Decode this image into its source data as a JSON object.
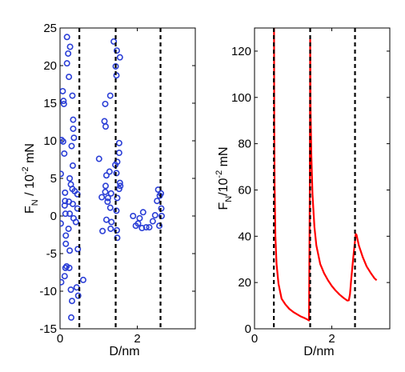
{
  "chart_data": [
    {
      "type": "scatter",
      "title": "",
      "xlabel": "D/nm",
      "ylabel": {
        "base": "F",
        "sub": "N",
        "rest": " / 10",
        "exp": "-2",
        "unit": " mN"
      },
      "xlim": [
        0,
        3.5
      ],
      "ylim": [
        -15,
        25
      ],
      "xticks": [
        0,
        2
      ],
      "yticks": [
        -15,
        -10,
        -5,
        0,
        5,
        10,
        15,
        20,
        25
      ],
      "marker": "circle",
      "marker_color": "#2b3fd6",
      "vlines": [
        0.5,
        1.44,
        2.6
      ],
      "points": [
        [
          0.04,
          10.1
        ],
        [
          0.02,
          5.6
        ],
        [
          0.02,
          -1.0
        ],
        [
          0.03,
          -8.8
        ],
        [
          0.07,
          16.6
        ],
        [
          0.09,
          15.3
        ],
        [
          0.1,
          14.9
        ],
        [
          0.08,
          9.9
        ],
        [
          0.11,
          8.3
        ],
        [
          0.13,
          3.1
        ],
        [
          0.13,
          2.0
        ],
        [
          0.12,
          1.4
        ],
        [
          0.14,
          0.3
        ],
        [
          0.15,
          -2.6
        ],
        [
          0.15,
          -3.7
        ],
        [
          0.17,
          -6.7
        ],
        [
          0.14,
          -6.9
        ],
        [
          0.12,
          -8.0
        ],
        [
          0.18,
          23.8
        ],
        [
          0.18,
          20.3
        ],
        [
          0.21,
          21.6
        ],
        [
          0.23,
          18.5
        ],
        [
          0.26,
          22.5
        ],
        [
          0.25,
          5.0
        ],
        [
          0.28,
          4.2
        ],
        [
          0.23,
          1.9
        ],
        [
          0.25,
          0.3
        ],
        [
          0.22,
          -1.7
        ],
        [
          0.25,
          -4.6
        ],
        [
          0.24,
          -6.9
        ],
        [
          0.28,
          -9.8
        ],
        [
          0.32,
          16.0
        ],
        [
          0.34,
          12.8
        ],
        [
          0.34,
          11.6
        ],
        [
          0.36,
          10.4
        ],
        [
          0.3,
          9.3
        ],
        [
          0.33,
          6.7
        ],
        [
          0.32,
          3.6
        ],
        [
          0.38,
          3.3
        ],
        [
          0.33,
          1.6
        ],
        [
          0.35,
          -0.3
        ],
        [
          0.31,
          -11.3
        ],
        [
          0.29,
          -13.5
        ],
        [
          0.45,
          2.9
        ],
        [
          0.45,
          1.0
        ],
        [
          0.41,
          -0.8
        ],
        [
          0.46,
          -4.4
        ],
        [
          0.43,
          -9.5
        ],
        [
          0.47,
          -10.6
        ],
        [
          0.6,
          -8.5
        ],
        [
          1.01,
          7.6
        ],
        [
          1.08,
          2.5
        ],
        [
          1.1,
          -2.0
        ],
        [
          1.17,
          14.9
        ],
        [
          1.15,
          12.6
        ],
        [
          1.18,
          11.9
        ],
        [
          1.2,
          5.4
        ],
        [
          1.18,
          4.0
        ],
        [
          1.17,
          3.2
        ],
        [
          1.24,
          2.4
        ],
        [
          1.23,
          1.9
        ],
        [
          1.2,
          -0.5
        ],
        [
          1.28,
          5.9
        ],
        [
          1.3,
          16.0
        ],
        [
          1.32,
          3.0
        ],
        [
          1.3,
          1.1
        ],
        [
          1.33,
          -0.8
        ],
        [
          1.31,
          -1.7
        ],
        [
          1.39,
          23.2
        ],
        [
          1.44,
          19.9
        ],
        [
          1.46,
          18.7
        ],
        [
          1.47,
          22.0
        ],
        [
          1.48,
          7.2
        ],
        [
          1.43,
          6.8
        ],
        [
          1.46,
          5.7
        ],
        [
          1.48,
          2.4
        ],
        [
          1.46,
          0.7
        ],
        [
          1.47,
          -1.9
        ],
        [
          1.48,
          -2.9
        ],
        [
          1.55,
          21.1
        ],
        [
          1.53,
          9.7
        ],
        [
          1.53,
          8.4
        ],
        [
          1.55,
          4.4
        ],
        [
          1.53,
          3.6
        ],
        [
          1.56,
          4.0
        ],
        [
          1.89,
          0.0
        ],
        [
          1.96,
          -1.3
        ],
        [
          2.02,
          -1.0
        ],
        [
          2.06,
          -0.3
        ],
        [
          2.12,
          -1.6
        ],
        [
          2.15,
          0.5
        ],
        [
          2.23,
          -1.5
        ],
        [
          2.31,
          -1.5
        ],
        [
          2.4,
          -0.7
        ],
        [
          2.46,
          0.1
        ],
        [
          2.51,
          2.0
        ],
        [
          2.54,
          3.5
        ],
        [
          2.57,
          -1.3
        ],
        [
          2.58,
          2.7
        ],
        [
          2.61,
          3.0
        ],
        [
          2.62,
          1.0
        ],
        [
          2.63,
          0.0
        ]
      ]
    },
    {
      "type": "line",
      "title": "",
      "xlabel": "D/nm",
      "ylabel": {
        "base": "F",
        "sub": "N",
        "rest": "/10",
        "exp": "-2",
        "unit": " mN"
      },
      "xlim": [
        0,
        3.5
      ],
      "ylim": [
        0,
        130
      ],
      "xticks": [
        0,
        2
      ],
      "yticks": [
        0,
        20,
        40,
        60,
        80,
        100,
        120
      ],
      "line_color": "#ff0000",
      "vlines": [
        0.5,
        1.44,
        2.6
      ],
      "series": [
        {
          "x": [
            0.505,
            0.51,
            0.52,
            0.54,
            0.57,
            0.62,
            0.7,
            0.8,
            0.9,
            1.0,
            1.1,
            1.2,
            1.3,
            1.37,
            1.41,
            1.43,
            1.44,
            1.45,
            1.47,
            1.5,
            1.55,
            1.6,
            1.7,
            1.8,
            1.9,
            2.0,
            2.1,
            2.2,
            2.3,
            2.4,
            2.44,
            2.47,
            2.5,
            2.55,
            2.6,
            2.62,
            2.64,
            2.66,
            2.7,
            2.8,
            2.9,
            3.0,
            3.1,
            3.16
          ],
          "y": [
            130,
            90,
            62,
            40,
            28,
            19.5,
            13,
            10.5,
            8.6,
            7.3,
            6.3,
            5.3,
            4.6,
            4.0,
            3.6,
            60,
            125,
            95,
            75,
            58,
            44,
            36,
            28,
            24,
            21,
            18.5,
            16.5,
            14.8,
            13.4,
            12.2,
            12.3,
            15,
            21,
            30,
            38,
            41,
            40.6,
            39,
            36,
            31,
            27,
            24.3,
            21.9,
            21
          ]
        }
      ]
    }
  ]
}
